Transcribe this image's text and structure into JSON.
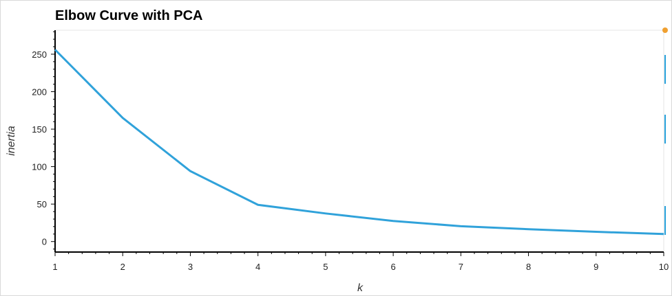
{
  "chart_data": {
    "type": "line",
    "title": "Elbow Curve with PCA",
    "xlabel": "k",
    "ylabel": "inertia",
    "x": [
      1,
      2,
      3,
      4,
      5,
      6,
      7,
      8,
      9,
      10
    ],
    "y": [
      256,
      165,
      94,
      49,
      37.5,
      27.5,
      20.5,
      16.5,
      13,
      10
    ],
    "xlim": [
      1,
      10
    ],
    "ylim": [
      -14,
      282
    ],
    "xticks": [
      1,
      2,
      3,
      4,
      5,
      6,
      7,
      8,
      9,
      10
    ],
    "yticks": [
      0,
      50,
      100,
      150,
      200,
      250
    ],
    "grid": false,
    "line_color": "#30a2da"
  },
  "toolbar": {
    "tools": [
      "pan-tool",
      "box-zoom-tool",
      "wheel-zoom-tool",
      "reset-tool"
    ]
  }
}
